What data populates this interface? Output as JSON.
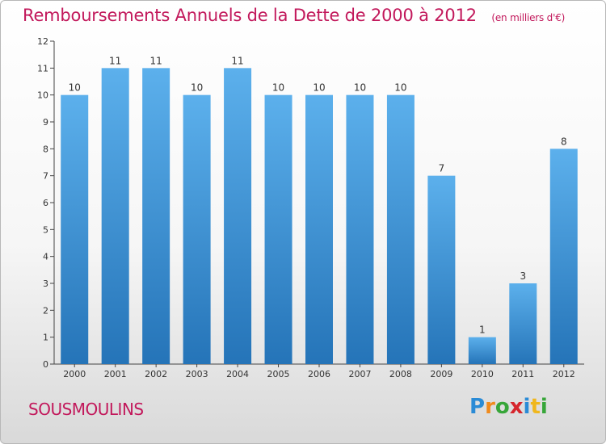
{
  "chart_data": {
    "type": "bar",
    "title": "Remboursements Annuels de la Dette de 2000 à 2012",
    "unit": "(en milliers d'€)",
    "categories": [
      "2000",
      "2001",
      "2002",
      "2003",
      "2004",
      "2005",
      "2006",
      "2007",
      "2008",
      "2009",
      "2010",
      "2011",
      "2012"
    ],
    "values": [
      10,
      11,
      11,
      10,
      11,
      10,
      10,
      10,
      10,
      7,
      1,
      3,
      8
    ],
    "ylim": [
      0,
      12
    ],
    "yticks": [
      0,
      1,
      2,
      3,
      4,
      5,
      6,
      7,
      8,
      9,
      10,
      11,
      12
    ],
    "grid": false,
    "bar_color": "#3a8fd8"
  },
  "commune": "SOUSMOULINS",
  "logo": {
    "letters": [
      "P",
      "r",
      "o",
      "x",
      "i",
      "t",
      "i"
    ],
    "colors": [
      "#2a8bd6",
      "#f08a1c",
      "#37a639",
      "#d6262d",
      "#2a8bd6",
      "#f0b71c",
      "#37a639"
    ]
  }
}
